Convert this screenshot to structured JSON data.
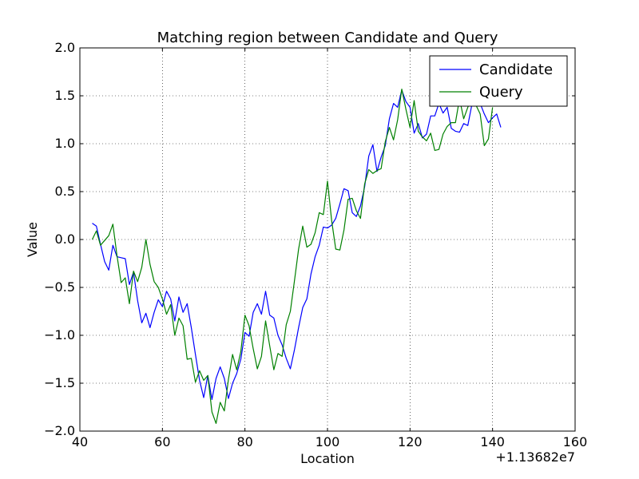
{
  "chart_data": {
    "type": "line",
    "title": "Matching region between Candidate and Query",
    "xlabel": "Location",
    "ylabel": "Value",
    "x_offset_label": "+1.13682e7",
    "xlim": [
      40,
      160
    ],
    "ylim": [
      -2.0,
      2.0
    ],
    "xticks": [
      "40",
      "60",
      "80",
      "100",
      "120",
      "140",
      "160"
    ],
    "yticks": [
      "−2.0",
      "−1.5",
      "−1.0",
      "−0.5",
      "0.0",
      "0.5",
      "1.0",
      "1.5",
      "2.0"
    ],
    "grid": true,
    "legend_position": "upper right",
    "series": [
      {
        "name": "Candidate",
        "color": "#0000ff",
        "x": [
          43,
          44,
          45,
          46,
          47,
          48,
          49,
          50,
          51,
          52,
          53,
          54,
          55,
          56,
          57,
          58,
          59,
          60,
          61,
          62,
          63,
          64,
          65,
          66,
          67,
          68,
          69,
          70,
          71,
          72,
          73,
          74,
          75,
          76,
          77,
          78,
          79,
          80,
          81,
          82,
          83,
          84,
          85,
          86,
          87,
          88,
          89,
          90,
          91,
          92,
          93,
          94,
          95,
          96,
          97,
          98,
          99,
          100,
          101,
          102,
          103,
          104,
          105,
          106,
          107,
          108,
          109,
          110,
          111,
          112,
          113,
          114,
          115,
          116,
          117,
          118,
          119,
          120,
          121,
          122,
          123,
          124,
          125,
          126,
          127,
          128,
          129,
          130,
          131,
          132,
          133,
          134,
          135,
          136,
          137,
          138,
          139,
          140,
          141,
          142
        ],
        "values": [
          0.17,
          0.14,
          -0.05,
          -0.23,
          -0.32,
          -0.06,
          -0.18,
          -0.19,
          -0.2,
          -0.47,
          -0.34,
          -0.64,
          -0.87,
          -0.77,
          -0.92,
          -0.76,
          -0.63,
          -0.7,
          -0.54,
          -0.62,
          -0.85,
          -0.6,
          -0.76,
          -0.67,
          -0.92,
          -1.2,
          -1.47,
          -1.65,
          -1.42,
          -1.67,
          -1.45,
          -1.33,
          -1.45,
          -1.66,
          -1.5,
          -1.4,
          -1.25,
          -0.97,
          -1.01,
          -0.76,
          -0.67,
          -0.78,
          -0.54,
          -0.79,
          -0.82,
          -1.0,
          -1.1,
          -1.24,
          -1.35,
          -1.15,
          -0.92,
          -0.71,
          -0.62,
          -0.36,
          -0.18,
          -0.06,
          0.13,
          0.12,
          0.15,
          0.22,
          0.37,
          0.53,
          0.51,
          0.28,
          0.24,
          0.35,
          0.55,
          0.87,
          0.99,
          0.71,
          0.86,
          0.98,
          1.26,
          1.42,
          1.38,
          1.56,
          1.44,
          1.38,
          1.11,
          1.21,
          1.06,
          1.1,
          1.29,
          1.29,
          1.42,
          1.32,
          1.38,
          1.16,
          1.13,
          1.12,
          1.21,
          1.19,
          1.41,
          1.4,
          1.42,
          1.31,
          1.22,
          1.27,
          1.31,
          1.17
        ]
      },
      {
        "name": "Query",
        "color": "#008000",
        "x": [
          43,
          44,
          45,
          46,
          47,
          48,
          49,
          50,
          51,
          52,
          53,
          54,
          55,
          56,
          57,
          58,
          59,
          60,
          61,
          62,
          63,
          64,
          65,
          66,
          67,
          68,
          69,
          70,
          71,
          72,
          73,
          74,
          75,
          76,
          77,
          78,
          79,
          80,
          81,
          82,
          83,
          84,
          85,
          86,
          87,
          88,
          89,
          90,
          91,
          92,
          93,
          94,
          95,
          96,
          97,
          98,
          99,
          100,
          101,
          102,
          103,
          104,
          105,
          106,
          107,
          108,
          109,
          110,
          111,
          112,
          113,
          114,
          115,
          116,
          117,
          118,
          119,
          120,
          121,
          122,
          123,
          124,
          125,
          126,
          127,
          128,
          129,
          130,
          131,
          132,
          133,
          134,
          135,
          136,
          137,
          138,
          139,
          140
        ],
        "values": [
          0.0,
          0.09,
          -0.06,
          -0.01,
          0.04,
          0.16,
          -0.17,
          -0.45,
          -0.4,
          -0.67,
          -0.33,
          -0.44,
          -0.29,
          0.0,
          -0.26,
          -0.44,
          -0.5,
          -0.62,
          -0.78,
          -0.68,
          -1.0,
          -0.82,
          -0.9,
          -1.25,
          -1.24,
          -1.49,
          -1.37,
          -1.47,
          -1.42,
          -1.8,
          -1.92,
          -1.7,
          -1.79,
          -1.46,
          -1.2,
          -1.36,
          -1.17,
          -0.79,
          -0.9,
          -1.14,
          -1.35,
          -1.22,
          -0.85,
          -1.11,
          -1.36,
          -1.19,
          -1.22,
          -0.89,
          -0.75,
          -0.43,
          -0.1,
          0.14,
          -0.08,
          -0.05,
          0.07,
          0.28,
          0.26,
          0.61,
          0.2,
          -0.1,
          -0.11,
          0.1,
          0.42,
          0.43,
          0.3,
          0.22,
          0.58,
          0.73,
          0.69,
          0.72,
          0.74,
          1.02,
          1.17,
          1.04,
          1.25,
          1.57,
          1.36,
          1.17,
          1.45,
          1.13,
          1.07,
          1.03,
          1.11,
          0.93,
          0.94,
          1.1,
          1.18,
          1.22,
          1.22,
          1.47,
          1.26,
          1.38,
          1.46,
          1.4,
          1.31,
          0.98,
          1.05,
          1.38
        ]
      }
    ]
  }
}
